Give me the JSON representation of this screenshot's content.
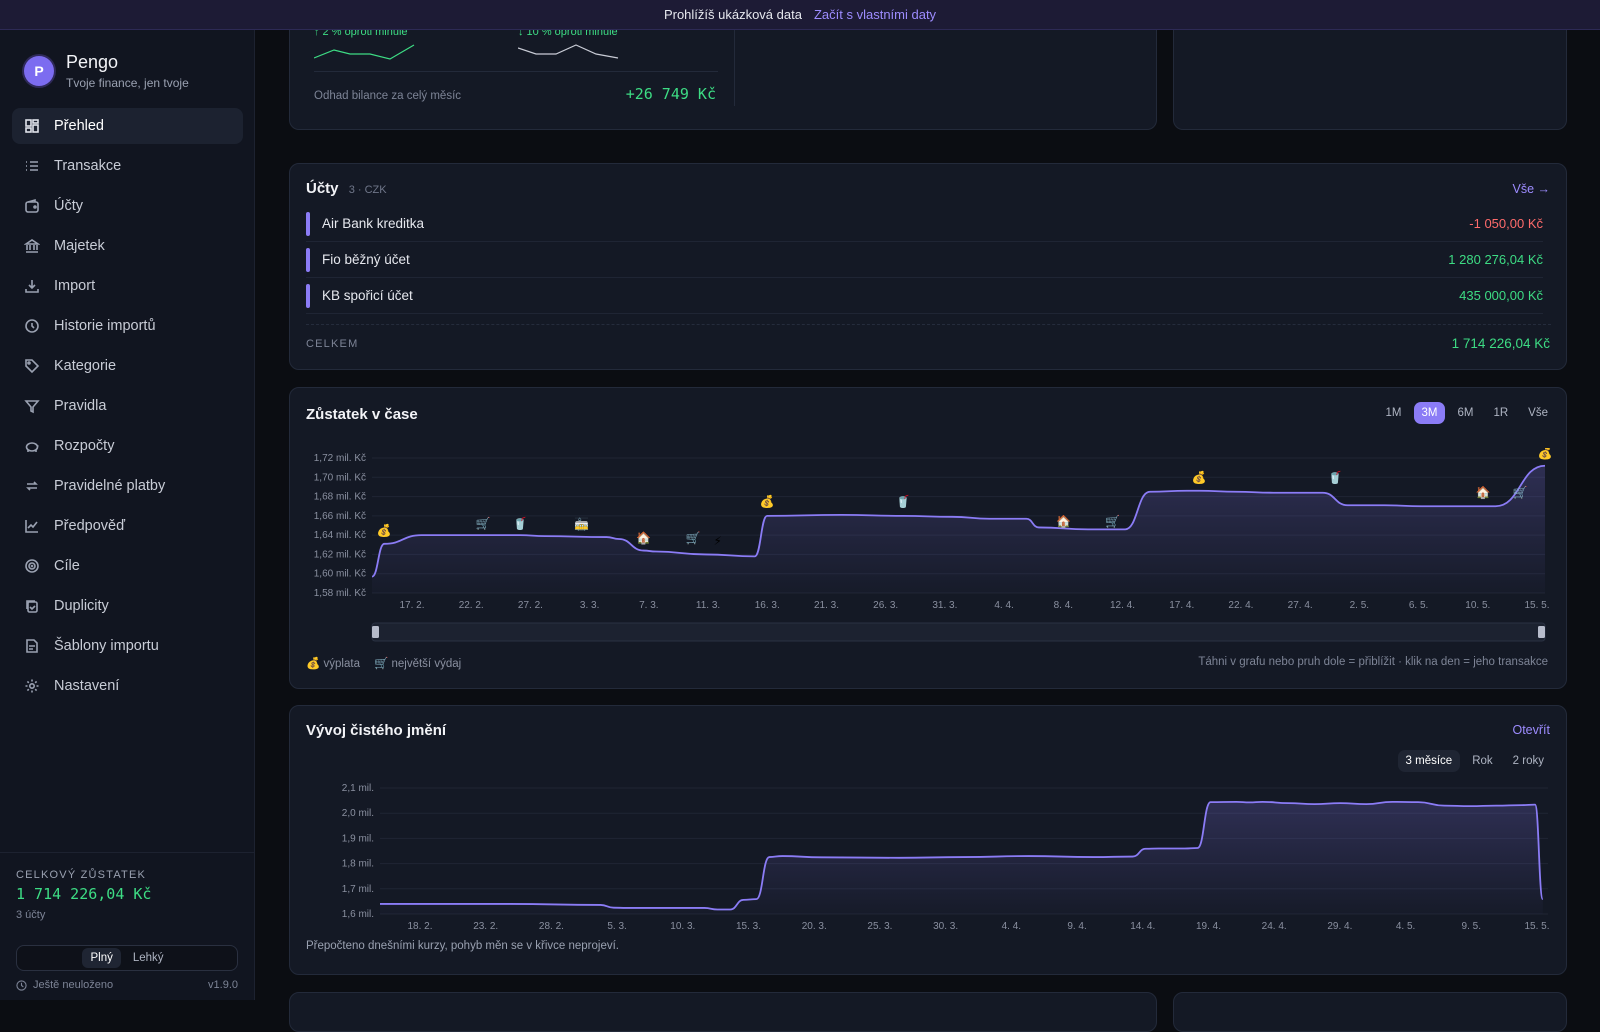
{
  "banner": {
    "text": "Prohlížíš ukázková data",
    "link": "Začít s vlastními daty"
  },
  "brand": {
    "logo": "P",
    "name": "Pengo",
    "tagline": "Tvoje finance, jen tvoje"
  },
  "nav": [
    {
      "label": "Přehled",
      "icon": "dashboard-icon",
      "active": true
    },
    {
      "label": "Transakce",
      "icon": "list-icon"
    },
    {
      "label": "Účty",
      "icon": "wallet-icon"
    },
    {
      "label": "Majetek",
      "icon": "bank-icon"
    },
    {
      "label": "Import",
      "icon": "download-icon"
    },
    {
      "label": "Historie importů",
      "icon": "history-icon"
    },
    {
      "label": "Kategorie",
      "icon": "tag-icon"
    },
    {
      "label": "Pravidla",
      "icon": "filter-icon"
    },
    {
      "label": "Rozpočty",
      "icon": "piggy-bank-icon"
    },
    {
      "label": "Pravidelné platby",
      "icon": "repeat-icon"
    },
    {
      "label": "Předpověď",
      "icon": "trend-icon"
    },
    {
      "label": "Cíle",
      "icon": "target-icon"
    },
    {
      "label": "Duplicity",
      "icon": "duplicate-icon"
    },
    {
      "label": "Šablony importu",
      "icon": "template-icon"
    },
    {
      "label": "Nastavení",
      "icon": "gear-icon"
    }
  ],
  "sidebar_footer": {
    "total_label": "CELKOVÝ ZŮSTATEK",
    "total_value": "1 714 226,04 Kč",
    "accounts_count": "3 účty",
    "mode_full": "Plný",
    "mode_light": "Lehký",
    "saved_status": "Ještě neuloženo",
    "version": "v1.9.0"
  },
  "summary": {
    "trend_income": "↑ 2 % oproti minule",
    "trend_expense": "↓ 10 % oproti minule",
    "balance_label": "Odhad bilance za celý měsíc",
    "balance_value": "+26 749 Kč"
  },
  "accounts": {
    "title": "Účty",
    "meta": "3 · CZK",
    "all_link": "Vše →",
    "rows": [
      {
        "name": "Air Bank kreditka",
        "value": "-1 050,00 Kč",
        "sign": "neg"
      },
      {
        "name": "Fio běžný účet",
        "value": "1 280 276,04 Kč",
        "sign": "pos"
      },
      {
        "name": "KB spořicí účet",
        "value": "435 000,00 Kč",
        "sign": "pos"
      }
    ],
    "total_label": "CELKEM",
    "total_value": "1 714 226,04 Kč"
  },
  "balance_chart": {
    "title": "Zůstatek v čase",
    "ranges": [
      "1M",
      "3M",
      "6M",
      "1R",
      "Vše"
    ],
    "active_range": "3M",
    "legend_payday": "výplata",
    "legend_biggest": "největší výdaj",
    "hint": "Táhni v grafu nebo pruh dole = přiblížit · klik na den = jeho transakce",
    "payday_icon": "💰",
    "biggest_icon": "🛒"
  },
  "networth": {
    "title": "Vývoj čistého jmění",
    "open_link": "Otevřít",
    "ranges": [
      "3 měsíce",
      "Rok",
      "2 roky"
    ],
    "active_range": "3 měsíce",
    "note": "Přepočteno dnešními kurzy, pohyb měn se v křivce neprojeví."
  },
  "chart_data": [
    {
      "type": "line",
      "title": "Zůstatek v čase",
      "ylabel": "Kč",
      "ylim": [
        1.58,
        1.72
      ],
      "yticks": [
        "1,58 mil. Kč",
        "1,60 mil. Kč",
        "1,62 mil. Kč",
        "1,64 mil. Kč",
        "1,66 mil. Kč",
        "1,68 mil. Kč",
        "1,70 mil. Kč",
        "1,72 mil. Kč"
      ],
      "xticks": [
        "17. 2.",
        "22. 2.",
        "27. 2.",
        "3. 3.",
        "7. 3.",
        "11. 3.",
        "16. 3.",
        "21. 3.",
        "26. 3.",
        "31. 3.",
        "4. 4.",
        "8. 4.",
        "12. 4.",
        "17. 4.",
        "22. 4.",
        "27. 4.",
        "2. 5.",
        "6. 5.",
        "10. 5.",
        "15. 5."
      ],
      "x": [
        0,
        1,
        4,
        8,
        12,
        14,
        19,
        20,
        22,
        23,
        27,
        31,
        32,
        38,
        43,
        47,
        50,
        53,
        54,
        58,
        61,
        63,
        66,
        67,
        70,
        73,
        77,
        79,
        82,
        85,
        89,
        91,
        95
      ],
      "y": [
        1.597,
        1.631,
        1.64,
        1.64,
        1.64,
        1.639,
        1.638,
        1.636,
        1.624,
        1.623,
        1.62,
        1.618,
        1.66,
        1.661,
        1.66,
        1.659,
        1.657,
        1.657,
        1.648,
        1.646,
        1.646,
        1.685,
        1.686,
        1.686,
        1.685,
        1.684,
        1.684,
        1.671,
        1.671,
        1.67,
        1.67,
        1.67,
        1.712
      ],
      "markers": [
        {
          "x": 1,
          "y": 1.645,
          "icon": "💰"
        },
        {
          "x": 9,
          "y": 1.652,
          "icon": "🛒"
        },
        {
          "x": 12,
          "y": 1.652,
          "icon": "🥤"
        },
        {
          "x": 17,
          "y": 1.651,
          "icon": "🚋"
        },
        {
          "x": 22,
          "y": 1.637,
          "icon": "🏠"
        },
        {
          "x": 26,
          "y": 1.637,
          "icon": "🛒"
        },
        {
          "x": 28,
          "y": 1.634,
          "icon": "⚡"
        },
        {
          "x": 32,
          "y": 1.675,
          "icon": "💰"
        },
        {
          "x": 43,
          "y": 1.675,
          "icon": "🥤"
        },
        {
          "x": 56,
          "y": 1.654,
          "icon": "🏠"
        },
        {
          "x": 60,
          "y": 1.654,
          "icon": "🛒"
        },
        {
          "x": 67,
          "y": 1.7,
          "icon": "💰"
        },
        {
          "x": 78,
          "y": 1.7,
          "icon": "🥤"
        },
        {
          "x": 90,
          "y": 1.684,
          "icon": "🏠"
        },
        {
          "x": 93,
          "y": 1.684,
          "icon": "🛒"
        },
        {
          "x": 95,
          "y": 1.725,
          "icon": "💰"
        }
      ]
    },
    {
      "type": "area",
      "title": "Vývoj čistého jmění",
      "ylim": [
        1.6,
        2.1
      ],
      "yticks": [
        "1,6 mil.",
        "1,7 mil.",
        "1,8 mil.",
        "1,9 mil.",
        "2,0 mil.",
        "2,1 mil."
      ],
      "xticks": [
        "18. 2.",
        "23. 2.",
        "28. 2.",
        "5. 3.",
        "10. 3.",
        "15. 3.",
        "20. 3.",
        "25. 3.",
        "30. 3.",
        "4. 4.",
        "9. 4.",
        "14. 4.",
        "19. 4.",
        "24. 4.",
        "29. 4.",
        "4. 5.",
        "9. 5.",
        "15. 5."
      ],
      "x": [
        0,
        1,
        10,
        17,
        18,
        19,
        25,
        26,
        27,
        28,
        29,
        30,
        31,
        34,
        40,
        45,
        50,
        55,
        58,
        59,
        60,
        62,
        63,
        64,
        66,
        67,
        68,
        70,
        72,
        74,
        76,
        78,
        80,
        82,
        84,
        86,
        88,
        89,
        89.6
      ],
      "y": [
        1.64,
        1.64,
        1.64,
        1.636,
        1.625,
        1.624,
        1.624,
        1.618,
        1.618,
        1.656,
        1.659,
        1.826,
        1.83,
        1.825,
        1.823,
        1.826,
        1.83,
        1.826,
        1.828,
        1.859,
        1.86,
        1.86,
        1.862,
        2.044,
        2.045,
        2.043,
        2.045,
        2.04,
        2.036,
        2.04,
        2.036,
        2.045,
        2.044,
        2.03,
        2.028,
        2.03,
        2.032,
        2.034,
        1.659
      ]
    }
  ]
}
